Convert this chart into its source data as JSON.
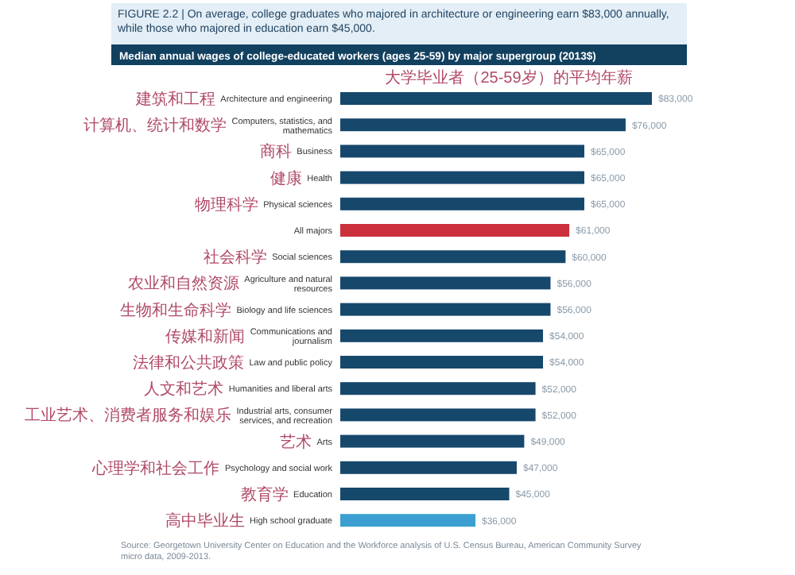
{
  "chart_data": {
    "type": "bar",
    "orientation": "horizontal",
    "title": "FIGURE 2.2 | On average, college graduates who majored in architecture or engineering earn $83,000 annually, while those who majored in education earn $45,000.",
    "subtitle": "Median annual wages of college-educated workers (ages 25-59) by major supergroup (2013$)",
    "categories": [
      "Architecture and engineering",
      "Computers, statistics, and mathematics",
      "Business",
      "Health",
      "Physical sciences",
      "All majors",
      "Social sciences",
      "Agriculture and natural resources",
      "Biology and life sciences",
      "Communications and journalism",
      "Law and public policy",
      "Humanities and liberal arts",
      "Industrial arts, consumer services, and recreation",
      "Arts",
      "Psychology and social work",
      "Education",
      "High school graduate"
    ],
    "y2_categories": [
      "建筑和工程",
      "计算机、统计和数学",
      "商科",
      "健康",
      "物理科学",
      null,
      "社会科学",
      "农业和自然资源",
      "生物和生命科学",
      "传媒和新闻",
      "法律和公共政策",
      "人文和艺术",
      "工业艺术、消费者服务和娱乐",
      "艺术",
      "心理学和社会工作",
      "教育学",
      "高中毕业生"
    ],
    "values": [
      83000,
      76000,
      65000,
      65000,
      65000,
      61000,
      60000,
      56000,
      56000,
      54000,
      54000,
      52000,
      52000,
      49000,
      47000,
      45000,
      36000
    ],
    "value_labels": [
      "$83,000",
      "$76,000",
      "$65,000",
      "$65,000",
      "$65,000",
      "$61,000",
      "$60,000",
      "$56,000",
      "$56,000",
      "$54,000",
      "$54,000",
      "$52,000",
      "$52,000",
      "$49,000",
      "$47,000",
      "$45,000",
      "$36,000"
    ],
    "colors": [
      "#16486c",
      "#16486c",
      "#16486c",
      "#16486c",
      "#16486c",
      "#cc2f3c",
      "#16486c",
      "#16486c",
      "#16486c",
      "#16486c",
      "#16486c",
      "#16486c",
      "#16486c",
      "#16486c",
      "#16486c",
      "#16486c",
      "#3b9fd1"
    ],
    "annotations": [
      "大学毕业者（25-59岁）的平均年薪",
      "Source: Georgetown University Center on Education and the Workforce analysis of U.S. Census Bureau, American Community Survey micro data, 2009-2013."
    ]
  }
}
